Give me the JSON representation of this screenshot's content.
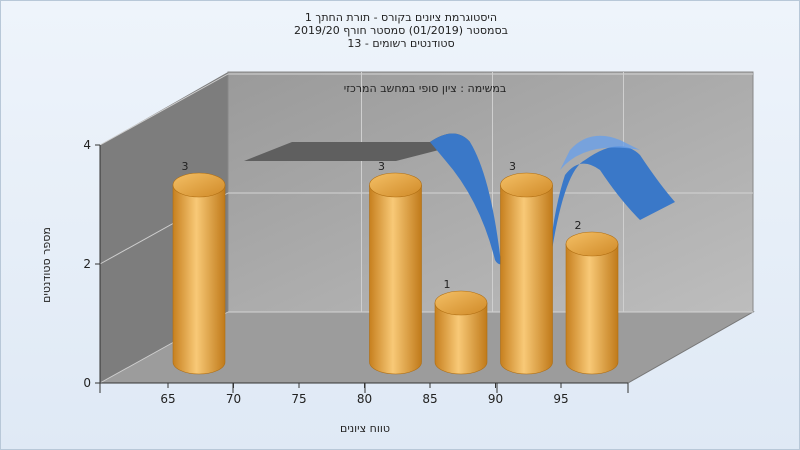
{
  "chart_data": {
    "type": "bar",
    "title_lines": [
      "היסטוגרמת ציונים בקורס - תורת החתך 1",
      "בסמסטר (01/2019) סמסטר חורף 2019/20",
      "סטודנטים רשומים - 13"
    ],
    "annotation": "במשימה : ציון סופי במחשב המרכזי",
    "xlabel": "טווח ציונים",
    "ylabel": "מספר סטודנטים",
    "x_ticks": [
      "65",
      "70",
      "75",
      "80",
      "85",
      "90",
      "95"
    ],
    "y_ticks": [
      "0",
      "2",
      "4"
    ],
    "ylim": [
      0,
      4
    ],
    "bars": [
      {
        "x": 65,
        "value": 3,
        "label": "3"
      },
      {
        "x": 80,
        "value": 3,
        "label": "3"
      },
      {
        "x": 85,
        "value": 1,
        "label": "1"
      },
      {
        "x": 90,
        "value": 3,
        "label": "3"
      },
      {
        "x": 95,
        "value": 2,
        "label": "2"
      }
    ],
    "grid": true,
    "colors": {
      "bars": "#e8a23a",
      "curve": "#3a78c8",
      "curve_back": "#606060",
      "walls": "#a9a9a9"
    }
  }
}
